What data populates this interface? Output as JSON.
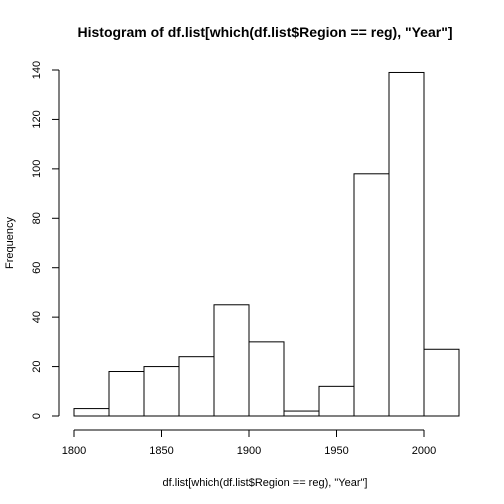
{
  "chart_data": {
    "type": "bar",
    "title": "Histogram of df.list[which(df.list$Region == reg), \"Year\"]",
    "xlabel": "df.list[which(df.list$Region == reg), \"Year\"]",
    "ylabel": "Frequency",
    "bin_edges": [
      1800,
      1820,
      1840,
      1860,
      1880,
      1900,
      1920,
      1940,
      1960,
      1980,
      2000,
      2020
    ],
    "values": [
      3,
      18,
      20,
      24,
      45,
      30,
      2,
      12,
      98,
      139,
      27
    ],
    "xlim": [
      1800,
      2020
    ],
    "ylim": [
      0,
      140
    ],
    "x_ticks": [
      1800,
      1850,
      1900,
      1950,
      2000
    ],
    "y_ticks": [
      0,
      20,
      40,
      60,
      80,
      100,
      120,
      140
    ],
    "grid": false,
    "legend": "none",
    "colors": {
      "bar_fill": "#ffffff",
      "bar_stroke": "#000000"
    }
  }
}
